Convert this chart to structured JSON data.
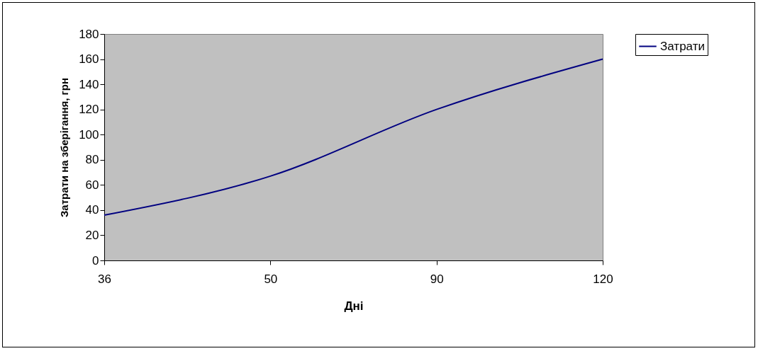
{
  "chart_data": {
    "type": "line",
    "xlabel": "Дні",
    "ylabel": "Затрати на зберігання, грн",
    "categories": [
      "36",
      "50",
      "90",
      "120"
    ],
    "series": [
      {
        "name": "Затрати",
        "color": "#000080",
        "values": [
          36,
          67,
          120,
          160
        ]
      }
    ],
    "ylim": [
      0,
      180
    ],
    "yticks": [
      0,
      20,
      40,
      60,
      80,
      100,
      120,
      140,
      160,
      180
    ],
    "grid": false,
    "legend": "right",
    "marker": "none",
    "line_style": "solid"
  }
}
